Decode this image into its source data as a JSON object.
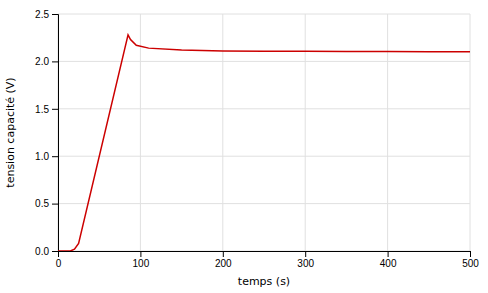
{
  "chart_data": {
    "type": "line",
    "x": [
      0,
      15,
      20,
      25,
      85,
      88,
      95,
      110,
      150,
      200,
      250,
      300,
      350,
      400,
      450,
      500
    ],
    "values": [
      0.0,
      0.0,
      0.02,
      0.08,
      2.28,
      2.23,
      2.17,
      2.14,
      2.12,
      2.11,
      2.108,
      2.106,
      2.105,
      2.104,
      2.103,
      2.103
    ],
    "color": "#cc0000",
    "xlabel": "temps (s)",
    "ylabel": "tension capacité (V)",
    "xlim": [
      0,
      500
    ],
    "ylim": [
      0,
      2.5
    ],
    "xticks": [
      0,
      100,
      200,
      300,
      400,
      500
    ],
    "yticks": [
      {
        "value": 0,
        "label": "0.0"
      },
      0.5,
      {
        "value": 1,
        "label": "1.0"
      },
      1.5,
      {
        "value": 2,
        "label": "2.0"
      },
      2.5
    ],
    "grid": true
  }
}
